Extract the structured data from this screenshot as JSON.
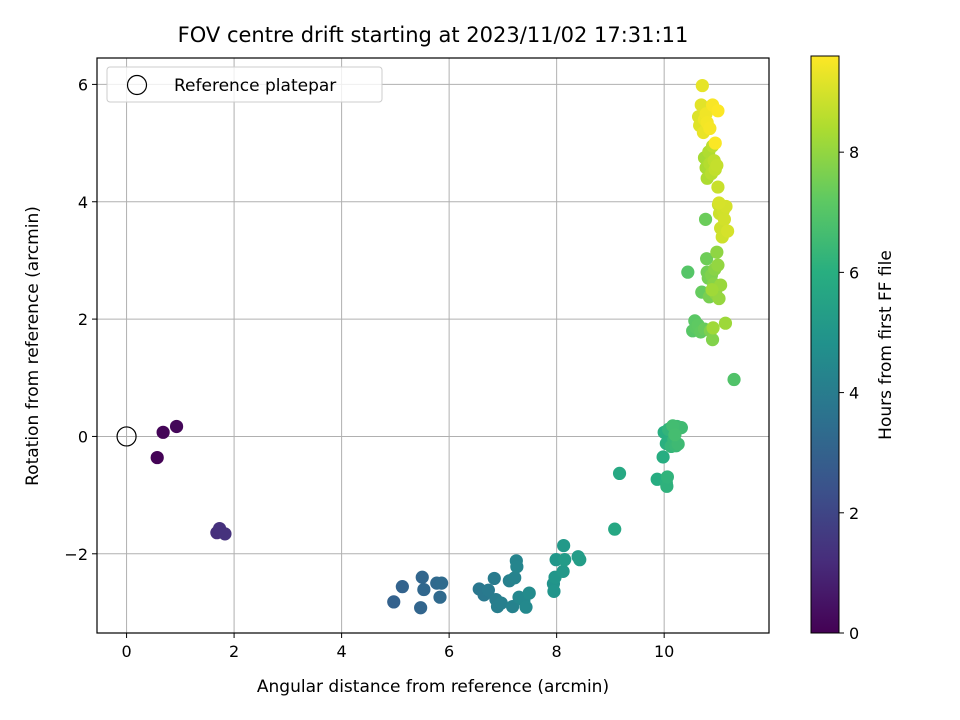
{
  "chart_data": {
    "type": "scatter",
    "title": "FOV centre drift starting at 2023/11/02 17:31:11",
    "xlabel": "Angular distance from reference (arcmin)",
    "ylabel": "Rotation from reference (arcmin)",
    "xlim": [
      -0.55,
      11.95
    ],
    "ylim": [
      -3.35,
      6.45
    ],
    "xticks": [
      0,
      2,
      4,
      6,
      8,
      10
    ],
    "yticks": [
      -2,
      0,
      2,
      4,
      6
    ],
    "grid": true,
    "legend": {
      "position": "upper-left",
      "entries": [
        "Reference platepar"
      ]
    },
    "reference_point": {
      "x": 0,
      "y": 0,
      "label": "Reference platepar"
    },
    "colorbar": {
      "label": "Hours from first FF file",
      "colormap": "viridis",
      "range": [
        0,
        9.6
      ],
      "ticks": [
        0,
        2,
        4,
        6,
        8
      ]
    },
    "points": [
      [
        0.68,
        0.07,
        0.1
      ],
      [
        0.93,
        0.17,
        0.15
      ],
      [
        0.57,
        -0.36,
        0.05
      ],
      [
        1.68,
        -1.64,
        1.3
      ],
      [
        1.73,
        -1.57,
        1.32
      ],
      [
        1.83,
        -1.66,
        1.35
      ],
      [
        4.97,
        -2.82,
        3.0
      ],
      [
        5.13,
        -2.56,
        3.05
      ],
      [
        5.47,
        -2.92,
        3.1
      ],
      [
        5.5,
        -2.4,
        3.15
      ],
      [
        5.53,
        -2.61,
        3.2
      ],
      [
        5.77,
        -2.5,
        3.25
      ],
      [
        5.83,
        -2.74,
        3.3
      ],
      [
        5.86,
        -2.5,
        3.35
      ],
      [
        6.56,
        -2.6,
        3.8
      ],
      [
        6.65,
        -2.7,
        3.85
      ],
      [
        6.73,
        -2.62,
        3.9
      ],
      [
        6.84,
        -2.42,
        3.95
      ],
      [
        6.87,
        -2.78,
        4.0
      ],
      [
        6.9,
        -2.9,
        4.05
      ],
      [
        6.97,
        -2.84,
        4.1
      ],
      [
        7.12,
        -2.46,
        4.15
      ],
      [
        7.18,
        -2.9,
        4.2
      ],
      [
        7.22,
        -2.41,
        4.25
      ],
      [
        7.25,
        -2.12,
        4.3
      ],
      [
        7.26,
        -2.22,
        4.35
      ],
      [
        7.3,
        -2.74,
        4.4
      ],
      [
        7.39,
        -2.8,
        4.45
      ],
      [
        7.43,
        -2.91,
        4.5
      ],
      [
        7.49,
        -2.67,
        4.55
      ],
      [
        7.94,
        -2.51,
        4.9
      ],
      [
        7.95,
        -2.64,
        4.95
      ],
      [
        7.97,
        -2.4,
        5.0
      ],
      [
        7.99,
        -2.1,
        5.05
      ],
      [
        8.12,
        -2.3,
        5.1
      ],
      [
        8.13,
        -1.86,
        5.15
      ],
      [
        8.15,
        -2.1,
        5.2
      ],
      [
        8.4,
        -2.05,
        5.25
      ],
      [
        8.43,
        -2.1,
        5.3
      ],
      [
        9.08,
        -1.58,
        5.7
      ],
      [
        9.17,
        -0.63,
        5.75
      ],
      [
        9.87,
        -0.73,
        5.9
      ],
      [
        9.98,
        -0.35,
        5.95
      ],
      [
        10.0,
        0.07,
        6.0
      ],
      [
        10.04,
        -0.12,
        6.05
      ],
      [
        10.04,
        -0.79,
        6.1
      ],
      [
        10.05,
        -0.85,
        6.15
      ],
      [
        10.06,
        -0.69,
        6.2
      ],
      [
        10.08,
        0.12,
        6.25
      ],
      [
        10.13,
        -0.17,
        6.3
      ],
      [
        10.18,
        -0.05,
        6.35
      ],
      [
        10.22,
        -0.16,
        6.4
      ],
      [
        10.24,
        0.17,
        6.45
      ],
      [
        10.26,
        -0.13,
        6.5
      ],
      [
        10.32,
        0.15,
        6.55
      ],
      [
        10.16,
        0.18,
        6.6
      ],
      [
        10.2,
        0.03,
        6.65
      ],
      [
        11.3,
        0.97,
        6.9
      ],
      [
        10.44,
        2.8,
        7.0
      ],
      [
        10.53,
        1.8,
        7.05
      ],
      [
        10.57,
        1.97,
        7.1
      ],
      [
        10.6,
        1.85,
        7.15
      ],
      [
        10.63,
        1.9,
        7.2
      ],
      [
        10.68,
        1.78,
        7.25
      ],
      [
        10.7,
        2.46,
        7.3
      ],
      [
        10.75,
        1.83,
        7.35
      ],
      [
        10.77,
        3.7,
        7.4
      ],
      [
        10.79,
        3.03,
        7.45
      ],
      [
        10.8,
        2.8,
        7.5
      ],
      [
        10.82,
        2.7,
        7.55
      ],
      [
        10.84,
        2.38,
        7.6
      ],
      [
        10.86,
        1.8,
        7.65
      ],
      [
        10.88,
        2.75,
        7.7
      ],
      [
        10.9,
        1.65,
        7.75
      ],
      [
        10.92,
        2.6,
        7.8
      ],
      [
        10.94,
        2.85,
        7.85
      ],
      [
        10.96,
        2.43,
        7.9
      ],
      [
        10.98,
        3.14,
        7.95
      ],
      [
        11.0,
        2.92,
        8.0
      ],
      [
        11.02,
        2.35,
        8.05
      ],
      [
        11.05,
        2.58,
        8.1
      ],
      [
        11.14,
        1.93,
        8.15
      ],
      [
        10.91,
        1.85,
        8.18
      ],
      [
        10.89,
        2.5,
        8.2
      ],
      [
        10.75,
        4.75,
        8.3
      ],
      [
        10.78,
        4.58,
        8.35
      ],
      [
        10.8,
        4.4,
        8.4
      ],
      [
        10.83,
        4.85,
        8.45
      ],
      [
        10.85,
        4.65,
        8.5
      ],
      [
        10.88,
        4.48,
        8.55
      ],
      [
        10.9,
        4.95,
        8.6
      ],
      [
        10.93,
        4.7,
        8.65
      ],
      [
        10.95,
        4.55,
        8.7
      ],
      [
        10.98,
        4.62,
        8.75
      ],
      [
        11.0,
        4.25,
        8.8
      ],
      [
        11.01,
        3.95,
        8.82
      ],
      [
        11.03,
        3.8,
        8.85
      ],
      [
        11.05,
        3.55,
        8.88
      ],
      [
        11.08,
        3.4,
        8.9
      ],
      [
        11.1,
        3.85,
        8.92
      ],
      [
        11.12,
        3.7,
        8.95
      ],
      [
        11.15,
        3.92,
        8.98
      ],
      [
        11.18,
        3.5,
        9.0
      ],
      [
        11.02,
        3.98,
        9.02
      ],
      [
        10.64,
        5.45,
        9.1
      ],
      [
        10.66,
        5.3,
        9.15
      ],
      [
        10.69,
        5.65,
        9.2
      ],
      [
        10.71,
        5.98,
        9.25
      ],
      [
        10.73,
        5.18,
        9.3
      ],
      [
        10.75,
        5.4,
        9.35
      ],
      [
        10.78,
        5.5,
        9.4
      ],
      [
        10.8,
        5.35,
        9.45
      ],
      [
        10.85,
        5.25,
        9.5
      ],
      [
        10.9,
        5.65,
        9.52
      ],
      [
        10.95,
        5.0,
        9.55
      ],
      [
        11.0,
        5.55,
        9.58
      ]
    ]
  }
}
